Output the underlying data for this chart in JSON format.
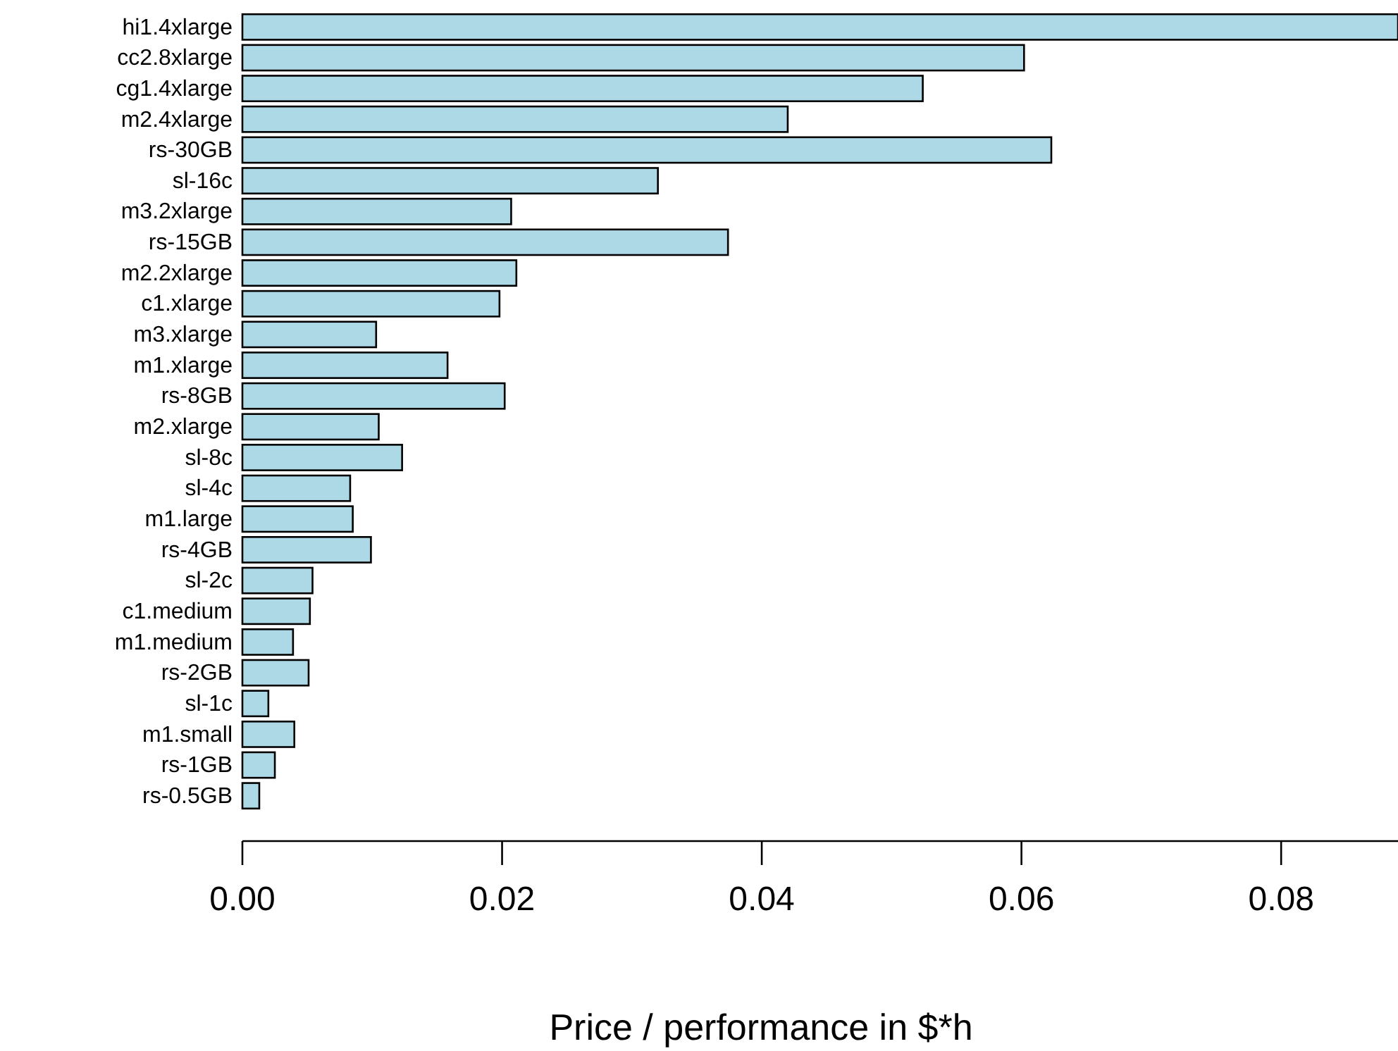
{
  "chart_data": {
    "type": "bar",
    "orientation": "horizontal",
    "xlabel": "Price / performance in $*h",
    "categories": [
      "hi1.4xlarge",
      "cc2.8xlarge",
      "cg1.4xlarge",
      "m2.4xlarge",
      "rs-30GB",
      "sl-16c",
      "m3.2xlarge",
      "rs-15GB",
      "m2.2xlarge",
      "c1.xlarge",
      "m3.xlarge",
      "m1.xlarge",
      "rs-8GB",
      "m2.xlarge",
      "sl-8c",
      "sl-4c",
      "m1.large",
      "rs-4GB",
      "sl-2c",
      "c1.medium",
      "m1.medium",
      "rs-2GB",
      "sl-1c",
      "m1.small",
      "rs-1GB",
      "rs-0.5GB"
    ],
    "values": [
      0.089,
      0.0602,
      0.0524,
      0.042,
      0.0623,
      0.032,
      0.0207,
      0.0374,
      0.0211,
      0.0198,
      0.0103,
      0.0158,
      0.0202,
      0.0105,
      0.0123,
      0.0083,
      0.0085,
      0.0099,
      0.0054,
      0.0052,
      0.0039,
      0.0051,
      0.002,
      0.004,
      0.0025,
      0.0013
    ],
    "color": "#add8e6",
    "xlim": [
      0,
      0.089
    ],
    "xticks": [
      {
        "value": 0,
        "label": "0.00"
      },
      {
        "value": 0.02,
        "label": "0.02"
      },
      {
        "value": 0.04,
        "label": "0.04"
      },
      {
        "value": 0.06,
        "label": "0.06"
      },
      {
        "value": 0.08,
        "label": "0.08"
      }
    ],
    "grid": false
  }
}
